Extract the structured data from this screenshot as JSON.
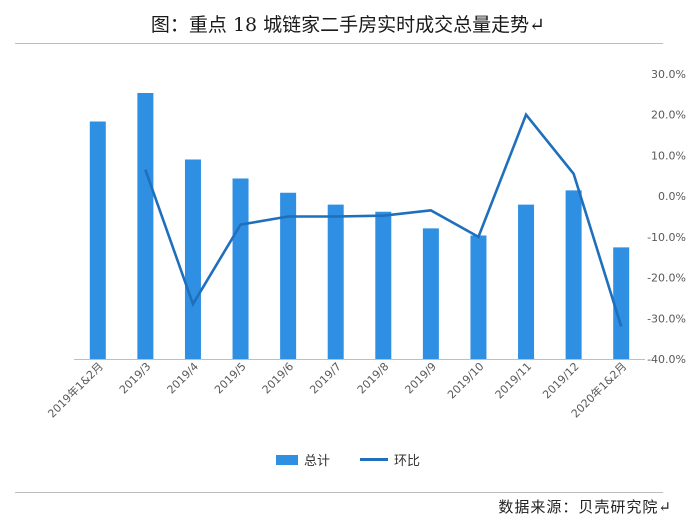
{
  "title": "图：重点 18 城链家二手房实时成交总量走势↵",
  "source": "数据来源：贝壳研究院↵",
  "legend": {
    "bar_label": "总计",
    "line_label": "环比"
  },
  "colors": {
    "bar": "#2f8fe3",
    "line": "#1f6fbd",
    "axis": "#bfbfbf",
    "text": "#595959"
  },
  "chart_data": {
    "type": "bar",
    "categories": [
      "2019年1&2月",
      "2019/3",
      "2019/4",
      "2019/5",
      "2019/6",
      "2019/7",
      "2019/8",
      "2019/9",
      "2019/10",
      "2019/11",
      "2019/12",
      "2020年1&2月"
    ],
    "series": [
      {
        "name": "总计",
        "type": "bar",
        "axis": "left",
        "values": [
          100,
          112,
          84,
          76,
          70,
          65,
          62,
          55,
          52,
          65,
          71,
          47
        ]
      },
      {
        "name": "环比",
        "type": "line",
        "axis": "right",
        "values": [
          null,
          6.5,
          -26.5,
          -7,
          -5,
          -5,
          -4.8,
          -3.5,
          -10,
          20,
          5.5,
          -32
        ]
      }
    ],
    "y_left_range": [
      0,
      120
    ],
    "y_right_range": [
      -40,
      30
    ],
    "y_right_ticks": [
      "30.0%",
      "20.0%",
      "10.0%",
      "0.0%",
      "-10.0%",
      "-20.0%",
      "-30.0%",
      "-40.0%"
    ],
    "legend_position": "bottom",
    "grid": false
  }
}
